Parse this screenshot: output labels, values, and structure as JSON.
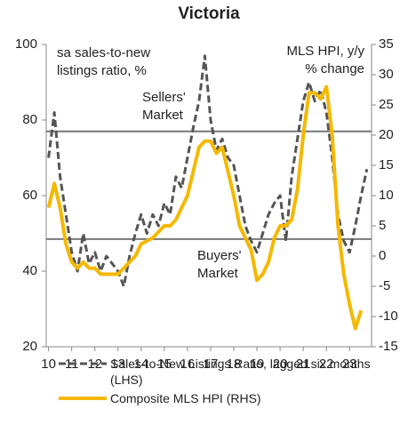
{
  "chart_data": {
    "type": "line",
    "title": "Victoria",
    "annotations": [
      "sa sales-to-new listings ratio, %",
      "MLS HPI, y/y % change",
      "Sellers' Market",
      "Buyers' Market"
    ],
    "x": [
      10,
      10.25,
      10.5,
      10.75,
      11,
      11.25,
      11.5,
      11.75,
      12,
      12.25,
      12.5,
      12.75,
      13,
      13.25,
      13.5,
      13.75,
      14,
      14.25,
      14.5,
      14.75,
      15,
      15.25,
      15.5,
      15.75,
      16,
      16.25,
      16.5,
      16.75,
      17,
      17.25,
      17.5,
      17.75,
      18,
      18.25,
      18.5,
      18.75,
      19,
      19.25,
      19.5,
      19.75,
      20,
      20.25,
      20.5,
      20.75,
      21,
      21.25,
      21.5,
      21.75,
      22,
      22.25,
      22.5,
      22.75,
      23,
      23.25,
      23.5,
      23.75
    ],
    "series": [
      {
        "name": "Sales-to-New Listings Ratio, lagged six months (LHS)",
        "color": "#555555",
        "dashed": true,
        "axis": "y",
        "values": [
          70,
          82,
          65,
          55,
          45,
          40,
          50,
          42,
          45,
          40,
          44,
          42,
          40,
          36,
          44,
          50,
          55,
          50,
          55,
          52,
          58,
          55,
          65,
          62,
          70,
          78,
          85,
          97,
          80,
          72,
          75,
          70,
          68,
          60,
          52,
          48,
          45,
          50,
          55,
          58,
          60,
          48,
          65,
          75,
          85,
          90,
          85,
          88,
          82,
          70,
          55,
          48,
          45,
          52,
          60,
          67
        ]
      },
      {
        "name": "Composite MLS HPI (RHS)",
        "color": "#f5b800",
        "dashed": false,
        "axis": "y2",
        "values": [
          8,
          12,
          8,
          2,
          -1,
          -2,
          -1,
          -2,
          -2,
          -3,
          -3,
          -3,
          -3,
          -2,
          -1,
          0,
          2,
          2.5,
          3,
          4,
          5,
          5,
          6,
          8,
          10,
          14,
          18,
          19,
          19,
          17,
          18,
          14,
          10,
          5,
          3,
          1,
          -4,
          -3,
          -1,
          3,
          5,
          5,
          6,
          11,
          20,
          27,
          27,
          26,
          28,
          20,
          5,
          -3,
          -8,
          -12,
          -9,
          null
        ]
      }
    ],
    "hlines": [
      77,
      48.5
    ],
    "xlim": [
      9.9,
      23.95
    ],
    "xticks": [
      10,
      11,
      12,
      13,
      14,
      15,
      16,
      17,
      18,
      19,
      20,
      21,
      22,
      23
    ],
    "ylim": [
      20,
      100
    ],
    "yticks": [
      20,
      40,
      60,
      80,
      100
    ],
    "y2lim": [
      -15,
      35
    ],
    "y2ticks": [
      -15,
      -10,
      -5,
      0,
      5,
      10,
      15,
      20,
      25,
      30,
      35
    ]
  }
}
